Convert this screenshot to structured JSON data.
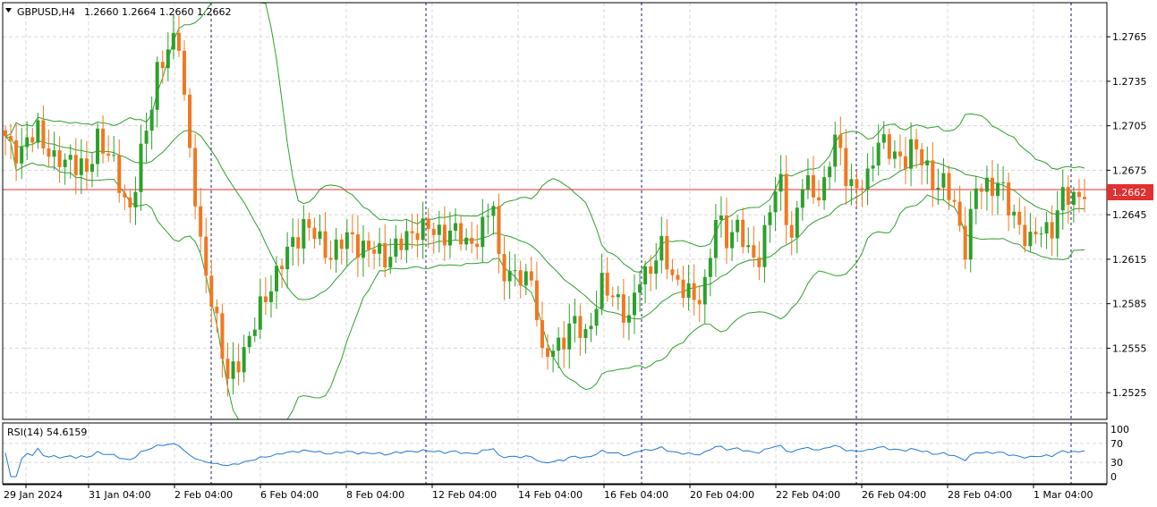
{
  "header": {
    "symbol_label": "GBPUSD,H4",
    "ohlc_text": "1.2660 1.2664 1.2660 1.2662"
  },
  "rsi_panel": {
    "label": "RSI(14) 54.6159",
    "levels": [
      "100",
      "70",
      "30",
      "0"
    ]
  },
  "current_price_tag": "1.2662",
  "colors": {
    "bull": "#2ca02c",
    "bear": "#f07820",
    "bands": "#2ca02c",
    "rsi": "#1f77d4",
    "price_line": "#e03030",
    "grid": "#d8d8d8",
    "separator": "#1a1a6e"
  },
  "chart_data": {
    "type": "candlestick",
    "title": "",
    "symbol": "GBPUSD",
    "timeframe": "H4",
    "y_tick_labels": [
      "1.2765",
      "1.2735",
      "1.2705",
      "1.2675",
      "1.2645",
      "1.2615",
      "1.2585",
      "1.2555",
      "1.2525"
    ],
    "ylim": [
      1.2507,
      1.2788
    ],
    "x_tick_labels": [
      "29 Jan 2024",
      "31 Jan 04:00",
      "2 Feb 04:00",
      "6 Feb 04:00",
      "8 Feb 04:00",
      "12 Feb 04:00",
      "14 Feb 04:00",
      "16 Feb 04:00",
      "20 Feb 04:00",
      "22 Feb 04:00",
      "26 Feb 04:00",
      "28 Feb 04:00",
      "1 Mar 04:00"
    ],
    "current_price": 1.2662,
    "indicators": [
      "Bollinger Bands",
      "RSI(14)"
    ],
    "rsi_value": 54.6159,
    "rsi_levels": [
      100,
      70,
      30,
      0
    ],
    "grid": true
  }
}
